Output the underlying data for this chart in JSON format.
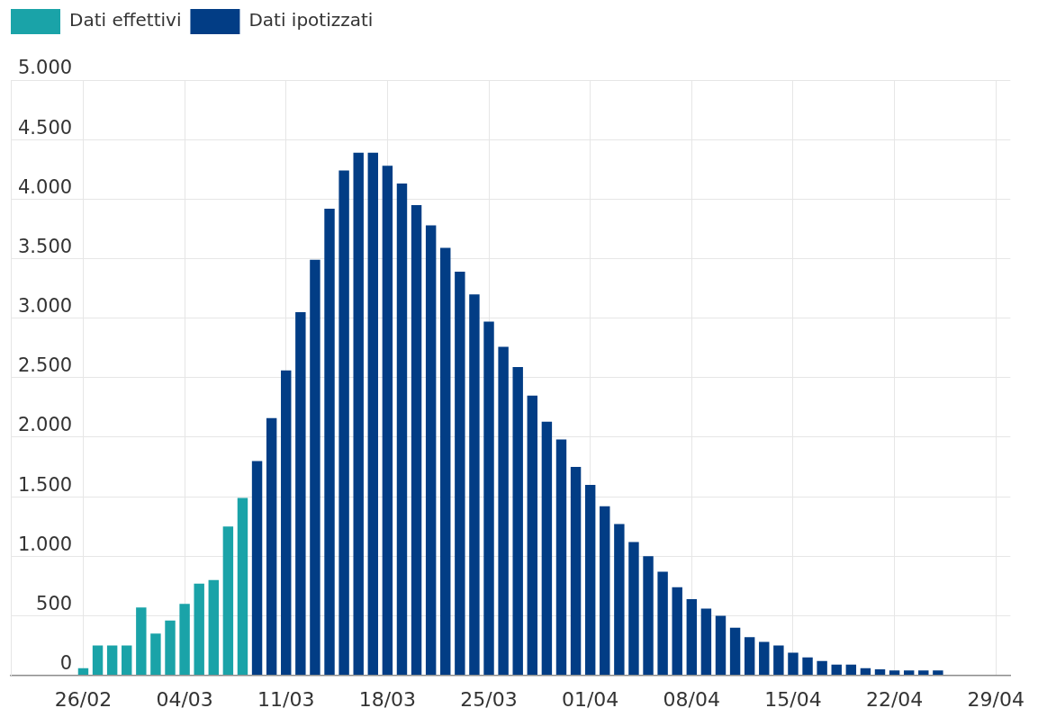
{
  "chart_data": {
    "type": "bar",
    "series": [
      {
        "name": "Dati effettivi",
        "color": "#1aa3a8",
        "x": [
          "--02-26",
          "--02-27",
          "--02-28",
          "--02-29",
          "--03-01",
          "--03-02",
          "--03-03",
          "--03-04",
          "--03-05",
          "--03-06",
          "--03-07",
          "--03-08"
        ],
        "values": [
          60,
          250,
          250,
          250,
          570,
          350,
          460,
          600,
          770,
          800,
          1250,
          1490
        ]
      },
      {
        "name": "Dati ipotizzati",
        "color": "#023d85",
        "x": [
          "--03-09",
          "--03-10",
          "--03-11",
          "--03-12",
          "--03-13",
          "--03-14",
          "--03-15",
          "--03-16",
          "--03-17",
          "--03-18",
          "--03-19",
          "--03-20",
          "--03-21",
          "--03-22",
          "--03-23",
          "--03-24",
          "--03-25",
          "--03-26",
          "--03-27",
          "--03-28",
          "--03-29",
          "--03-30",
          "--03-31",
          "--04-01",
          "--04-02",
          "--04-03",
          "--04-04",
          "--04-05",
          "--04-06",
          "--04-07",
          "--04-08",
          "--04-09",
          "--04-10",
          "--04-11",
          "--04-12",
          "--04-13",
          "--04-14",
          "--04-15",
          "--04-16",
          "--04-17",
          "--04-18",
          "--04-19",
          "--04-20",
          "--04-21",
          "--04-22",
          "--04-23",
          "--04-24",
          "--04-25"
        ],
        "values": [
          1800,
          2160,
          2560,
          3050,
          3490,
          3920,
          4240,
          4390,
          4390,
          4280,
          4130,
          3950,
          3780,
          3590,
          3390,
          3200,
          2970,
          2760,
          2590,
          2350,
          2130,
          1980,
          1750,
          1600,
          1420,
          1270,
          1120,
          1000,
          870,
          740,
          640,
          560,
          500,
          400,
          320,
          280,
          250,
          190,
          150,
          120,
          90,
          90,
          60,
          50,
          40,
          40,
          40,
          40
        ]
      }
    ],
    "xlim": [
      "--02-21",
      "--04-30"
    ],
    "xticks": [
      {
        "value": "--02-26",
        "label": "26/02"
      },
      {
        "value": "--03-04",
        "label": "04/03"
      },
      {
        "value": "--03-11",
        "label": "11/03"
      },
      {
        "value": "--03-18",
        "label": "18/03"
      },
      {
        "value": "--03-25",
        "label": "25/03"
      },
      {
        "value": "--04-01",
        "label": "01/04"
      },
      {
        "value": "--04-08",
        "label": "08/04"
      },
      {
        "value": "--04-15",
        "label": "15/04"
      },
      {
        "value": "--04-22",
        "label": "22/04"
      },
      {
        "value": "--04-29",
        "label": "29/04"
      }
    ],
    "ylim": [
      0,
      5000
    ],
    "yticks": [
      0,
      500,
      {
        "value": 1000,
        "label": "1.000"
      },
      {
        "value": 1500,
        "label": "1.500"
      },
      {
        "value": 2000,
        "label": "2.000"
      },
      {
        "value": 2500,
        "label": "2.500"
      },
      {
        "value": 3000,
        "label": "3.000"
      },
      {
        "value": 3500,
        "label": "3.500"
      },
      {
        "value": 4000,
        "label": "4.000"
      },
      {
        "value": 4500,
        "label": "4.500"
      },
      {
        "value": 5000,
        "label": "5.000"
      }
    ],
    "grid": true,
    "legend": "top left"
  }
}
